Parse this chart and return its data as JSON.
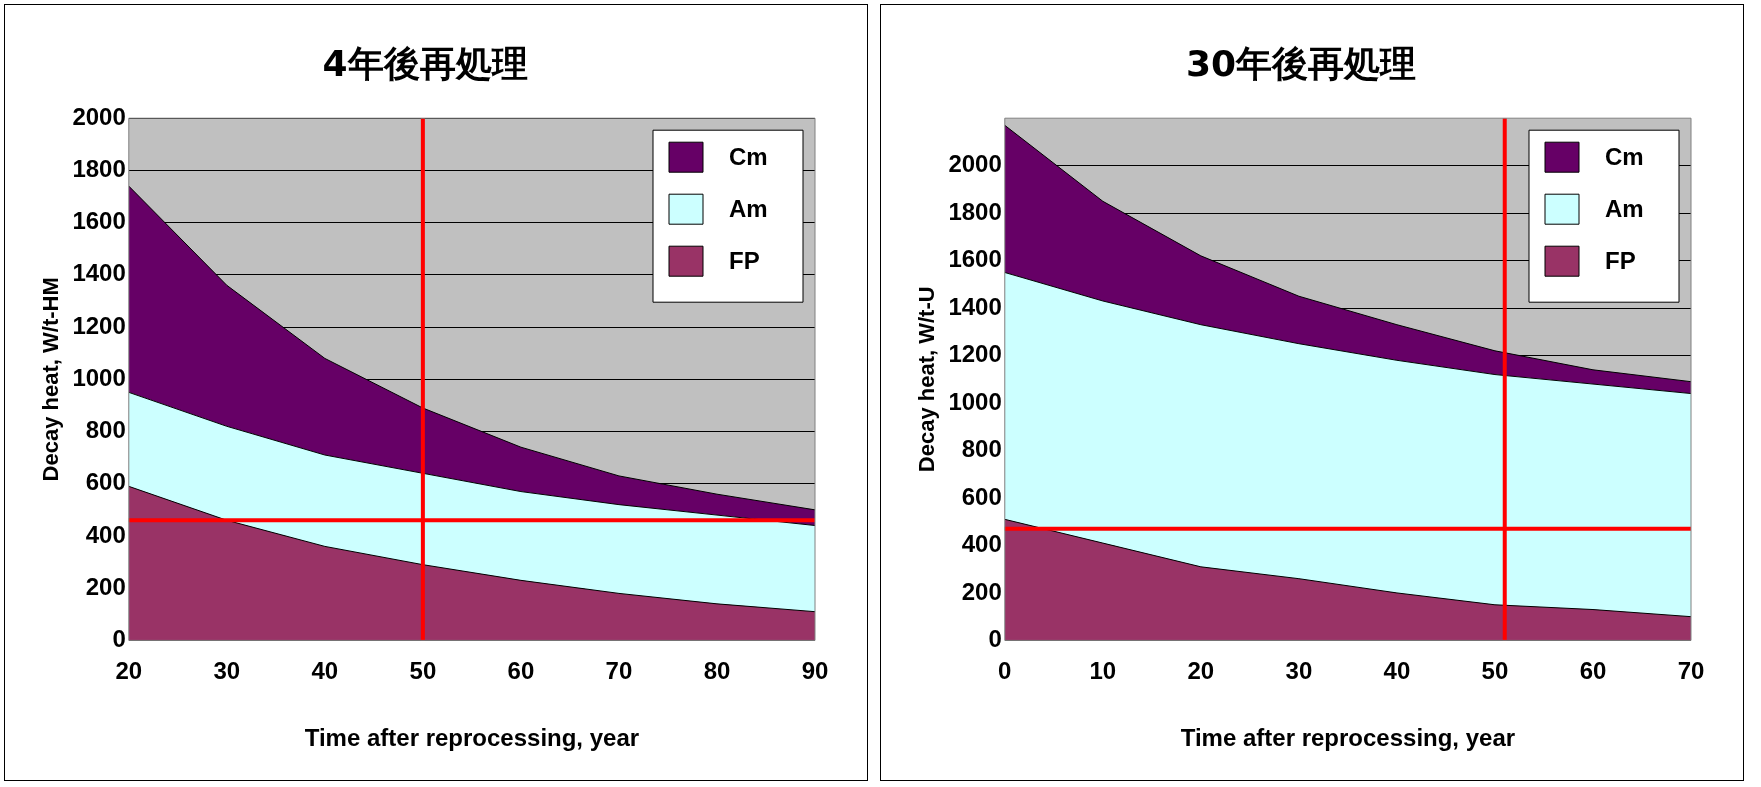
{
  "chart_data": [
    {
      "type": "area",
      "title": "4年後再処理",
      "xlabel": "Time after reprocessing, year",
      "ylabel": "Decay heat, W/t-HM",
      "stacked": true,
      "x": [
        20,
        30,
        40,
        50,
        60,
        70,
        80,
        90
      ],
      "xlim": [
        20,
        90
      ],
      "xticks": [
        20,
        30,
        40,
        50,
        60,
        70,
        80,
        90
      ],
      "ylim": [
        0,
        2000
      ],
      "yticks": [
        0,
        200,
        400,
        600,
        800,
        1000,
        1200,
        1400,
        1600,
        1800,
        2000
      ],
      "grid": "y",
      "legend": "top right",
      "series": [
        {
          "name": "FP",
          "color": "#993366",
          "values": [
            590,
            460,
            360,
            290,
            230,
            180,
            140,
            110
          ]
        },
        {
          "name": "Am",
          "color": "#ccffff",
          "values": [
            360,
            360,
            350,
            350,
            340,
            340,
            340,
            330
          ]
        },
        {
          "name": "Cm",
          "color": "#660066",
          "values": [
            790,
            540,
            370,
            250,
            170,
            110,
            80,
            60
          ]
        }
      ],
      "ref_lines": [
        {
          "axis": "x",
          "value": 50,
          "color": "#ff0000"
        },
        {
          "axis": "y",
          "value": 460,
          "color": "#ff0000"
        }
      ]
    },
    {
      "type": "area",
      "title": "30年後再処理",
      "xlabel": "Time after reprocessing, year",
      "ylabel": "Decay heat, W/t-U",
      "stacked": true,
      "x": [
        0,
        10,
        20,
        30,
        40,
        50,
        60,
        70
      ],
      "xlim": [
        0,
        70
      ],
      "xticks": [
        0,
        10,
        20,
        30,
        40,
        50,
        60,
        70
      ],
      "ylim": [
        0,
        2200
      ],
      "yticks": [
        0,
        200,
        400,
        600,
        800,
        1000,
        1200,
        1400,
        1600,
        1800,
        2000
      ],
      "grid": "y",
      "legend": "top right",
      "series": [
        {
          "name": "FP",
          "color": "#993366",
          "values": [
            510,
            410,
            310,
            260,
            200,
            150,
            130,
            100
          ]
        },
        {
          "name": "Am",
          "color": "#ccffff",
          "values": [
            1040,
            1020,
            1020,
            990,
            980,
            970,
            950,
            940
          ]
        },
        {
          "name": "Cm",
          "color": "#660066",
          "values": [
            620,
            420,
            290,
            200,
            150,
            100,
            60,
            50
          ]
        }
      ],
      "ref_lines": [
        {
          "axis": "x",
          "value": 51,
          "color": "#ff0000"
        },
        {
          "axis": "y",
          "value": 470,
          "color": "#ff0000"
        }
      ]
    }
  ]
}
